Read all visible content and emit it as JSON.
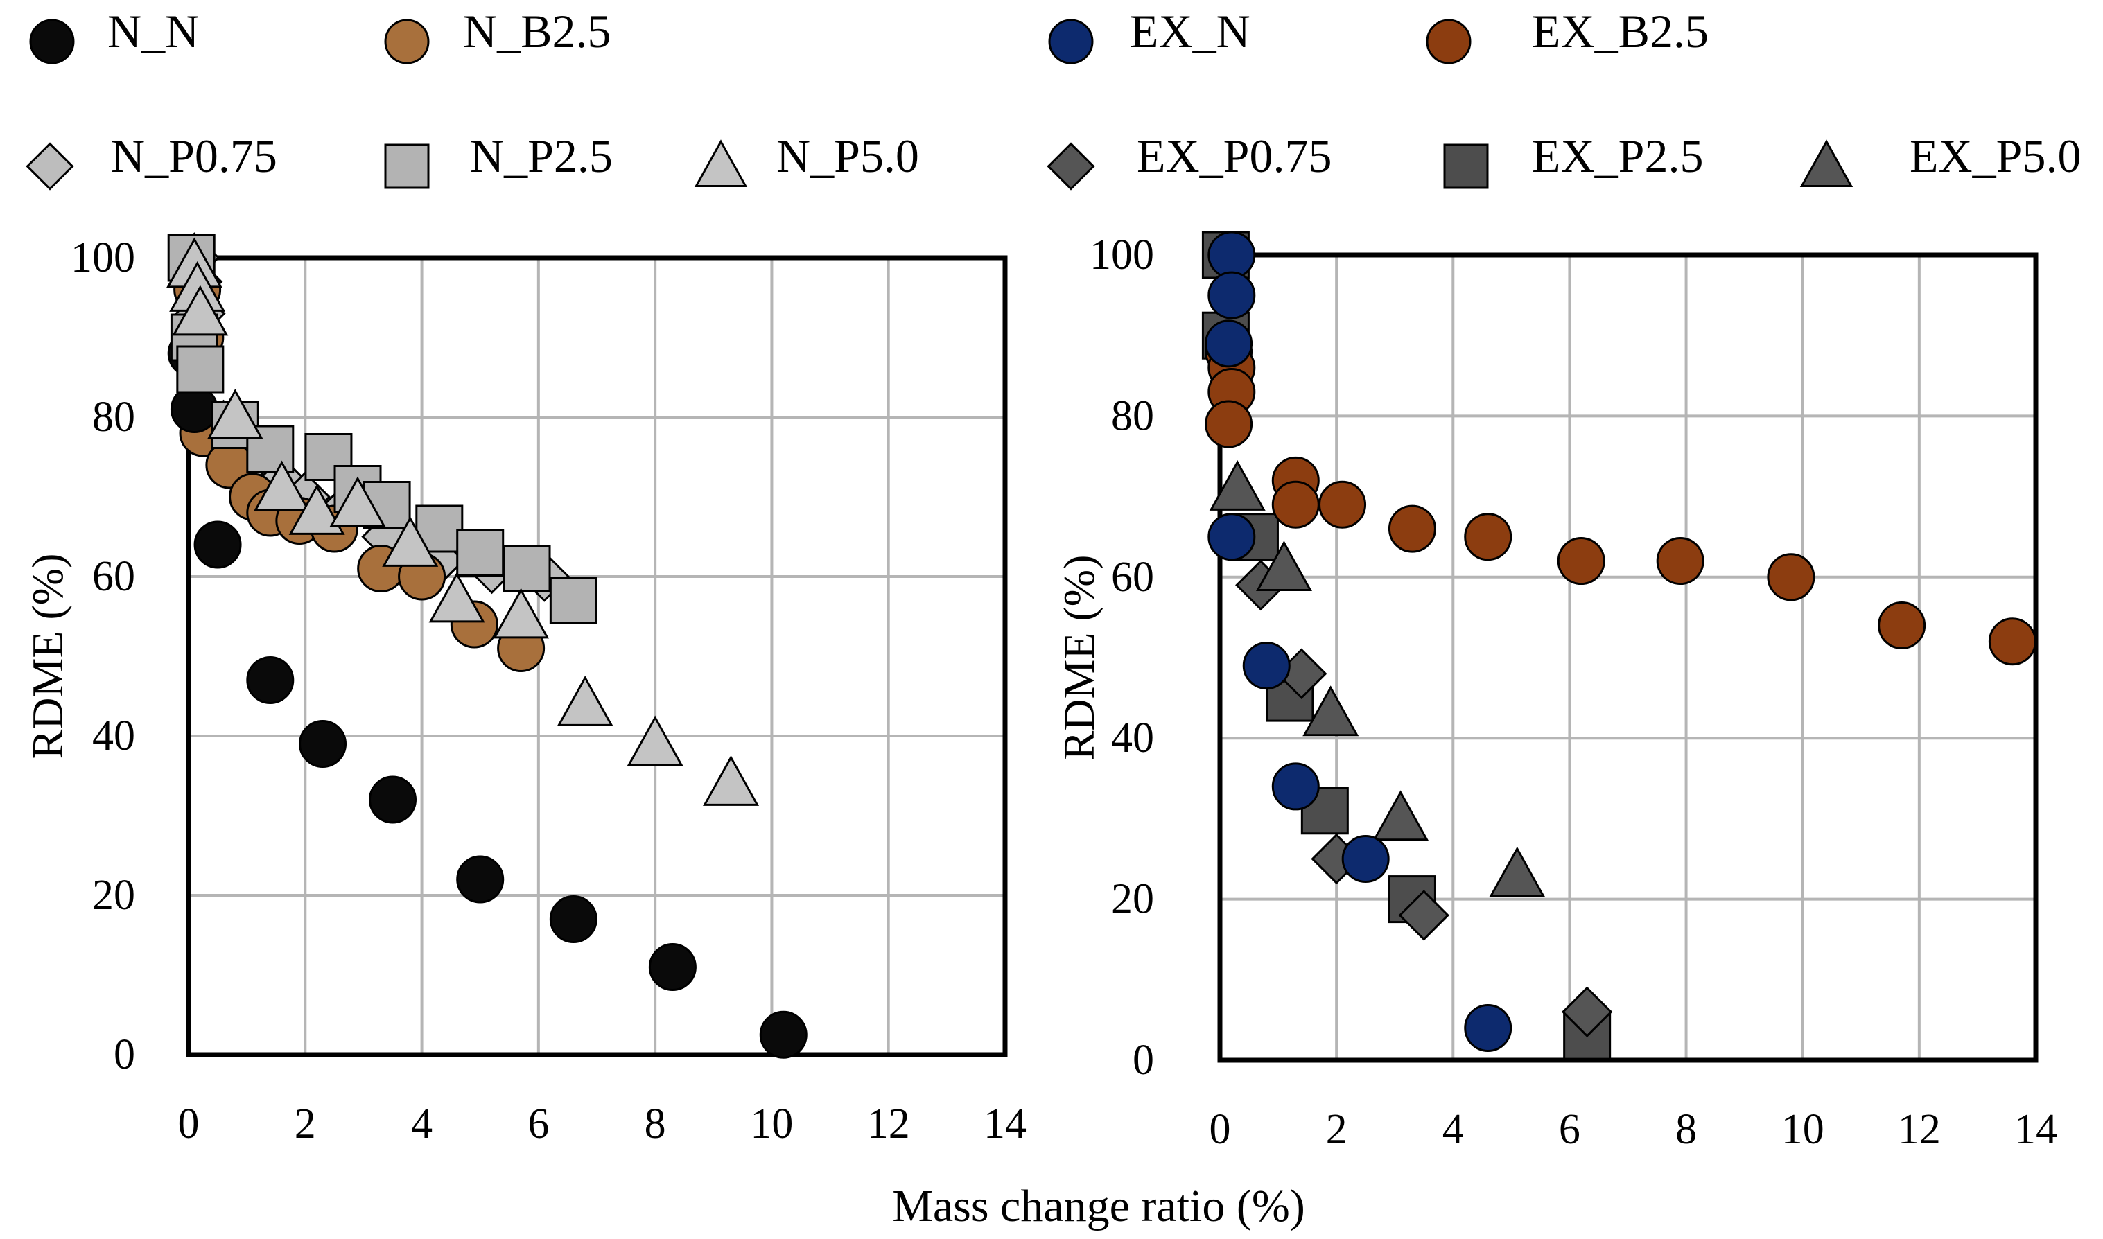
{
  "legend": {
    "items": [
      {
        "label": "N_N",
        "marker": "circle",
        "fill": "#0a0a0a"
      },
      {
        "label": "N_B2.5",
        "marker": "circle",
        "fill": "#a8703c"
      },
      {
        "label": "EX_N",
        "marker": "circle",
        "fill": "#0d2a6e"
      },
      {
        "label": "EX_B2.5",
        "marker": "circle",
        "fill": "#8c3d10"
      },
      {
        "label": "N_P0.75",
        "marker": "diamond",
        "fill": "#bdbdbd"
      },
      {
        "label": "N_P2.5",
        "marker": "square",
        "fill": "#b3b3b3"
      },
      {
        "label": "N_P5.0",
        "marker": "triangle",
        "fill": "#c4c4c4"
      },
      {
        "label": "EX_P0.75",
        "marker": "diamond",
        "fill": "#555555"
      },
      {
        "label": "EX_P2.5",
        "marker": "square",
        "fill": "#4d4d4d"
      },
      {
        "label": "EX_P5.0",
        "marker": "triangle",
        "fill": "#555555"
      }
    ]
  },
  "xlabel": "Mass change ratio (%)",
  "chart_data": [
    {
      "type": "scatter",
      "ylabel": "RDME  (%)",
      "xlim": [
        0,
        14
      ],
      "ylim": [
        0,
        100
      ],
      "xticks": [
        "0",
        "2",
        "4",
        "6",
        "8",
        "10",
        "12",
        "14"
      ],
      "yticks": [
        "0",
        "20",
        "40",
        "60",
        "80",
        "100"
      ],
      "grid": true,
      "series": [
        {
          "name": "N_P0.75",
          "marker": "diamond",
          "fill": "#bdbdbd",
          "x": [
            0.1,
            0.15,
            0.2,
            0.6,
            1.0,
            1.6,
            2.0,
            2.6,
            3.4,
            4.3,
            5.2,
            6.1
          ],
          "y": [
            100,
            97,
            93,
            79,
            74,
            72,
            70,
            68,
            65,
            62,
            61,
            60
          ]
        },
        {
          "name": "N_B2.5",
          "marker": "circle",
          "fill": "#a8703c",
          "x": [
            0.15,
            0.2,
            0.25,
            0.7,
            1.1,
            1.4,
            1.9,
            2.5,
            3.3,
            4.0,
            4.9,
            5.7
          ],
          "y": [
            96,
            90,
            78,
            74,
            70,
            68,
            67,
            66,
            61,
            60,
            54,
            51
          ]
        },
        {
          "name": "N_N",
          "marker": "circle",
          "fill": "#0a0a0a",
          "x": [
            0.05,
            0.1,
            0.5,
            1.4,
            2.3,
            3.5,
            5.0,
            6.6,
            8.3,
            10.2
          ],
          "y": [
            88,
            81,
            64,
            47,
            39,
            32,
            22,
            17,
            11,
            2.5
          ]
        },
        {
          "name": "N_P2.5",
          "marker": "square",
          "fill": "#b3b3b3",
          "x": [
            0.05,
            0.1,
            0.2,
            0.8,
            1.4,
            2.4,
            2.9,
            3.4,
            4.3,
            5.0,
            5.8,
            6.6
          ],
          "y": [
            100,
            90,
            86,
            79,
            76,
            75,
            71,
            69,
            66,
            63,
            61,
            57
          ]
        },
        {
          "name": "N_P5.0",
          "marker": "triangle",
          "fill": "#c4c4c4",
          "x": [
            0.1,
            0.15,
            0.2,
            0.8,
            1.6,
            2.2,
            2.9,
            3.8,
            4.6,
            5.7,
            6.8,
            8.0,
            9.3
          ],
          "y": [
            99,
            96,
            93,
            80,
            71,
            68,
            69,
            64,
            57,
            55,
            44,
            39,
            34
          ]
        }
      ]
    },
    {
      "type": "scatter",
      "ylabel": "RDME  (%)",
      "xlim": [
        0,
        14
      ],
      "ylim": [
        0,
        100
      ],
      "xticks": [
        "0",
        "2",
        "4",
        "6",
        "8",
        "10",
        "12",
        "14"
      ],
      "yticks": [
        "0",
        "20",
        "40",
        "60",
        "80",
        "100"
      ],
      "grid": true,
      "series": [
        {
          "name": "EX_P2.5",
          "marker": "square",
          "fill": "#4d4d4d",
          "x": [
            0.1,
            0.1,
            0.6,
            1.2,
            1.8,
            3.3,
            6.3
          ],
          "y": [
            100,
            90,
            65,
            45,
            31,
            20,
            3
          ]
        },
        {
          "name": "EX_P0.75",
          "marker": "diamond",
          "fill": "#555555",
          "x": [
            0.7,
            1.4,
            2.0,
            3.5,
            6.3
          ],
          "y": [
            59,
            48,
            25,
            18,
            6
          ]
        },
        {
          "name": "EX_P5.0",
          "marker": "triangle",
          "fill": "#555555",
          "x": [
            0.3,
            1.1,
            1.9,
            3.1,
            5.1
          ],
          "y": [
            71,
            61,
            43,
            30,
            23
          ]
        },
        {
          "name": "EX_B2.5",
          "marker": "circle",
          "fill": "#8c3d10",
          "x": [
            0.15,
            0.2,
            0.2,
            0.15,
            1.3,
            1.3,
            2.1,
            3.3,
            4.6,
            6.2,
            7.9,
            9.8,
            11.7,
            13.6
          ],
          "y": [
            88,
            86,
            83,
            79,
            72,
            69,
            69,
            66,
            65,
            62,
            62,
            60,
            54,
            52
          ]
        },
        {
          "name": "EX_N",
          "marker": "circle",
          "fill": "#0d2a6e",
          "x": [
            0.2,
            0.2,
            0.15,
            0.2,
            0.8,
            1.3,
            2.5,
            4.6
          ],
          "y": [
            100,
            95,
            89,
            65,
            49,
            34,
            25,
            4
          ]
        }
      ]
    }
  ]
}
